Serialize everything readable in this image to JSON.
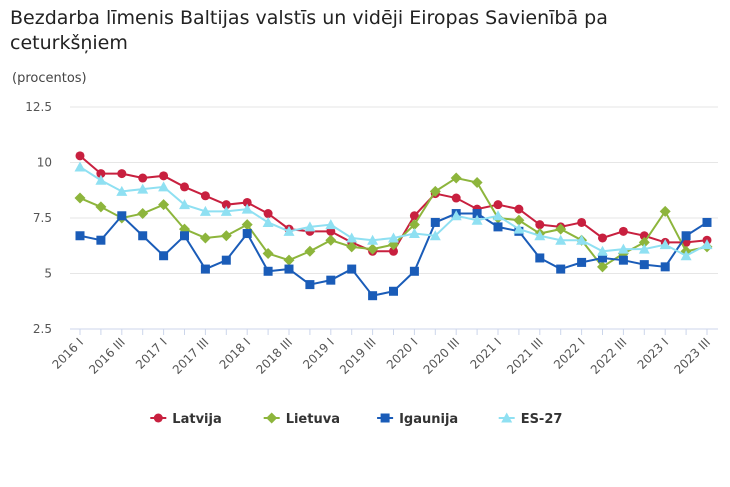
{
  "chart_data": {
    "type": "line",
    "title": "Bezdarba līmenis Baltijas valstīs un vidēji Eiropas Savienībā pa ceturkšņiem",
    "subtitle": "(procentos)",
    "categories": [
      "2016 I",
      null,
      "2016 III",
      null,
      "2017 I",
      null,
      "2017 III",
      null,
      "2018 I",
      null,
      "2018 III",
      null,
      "2019 I",
      null,
      "2019 III",
      null,
      "2020 I",
      null,
      "2020 III",
      null,
      "2021 I",
      null,
      "2021 III",
      null,
      "2022 I",
      null,
      "2022 III",
      null,
      "2023 I",
      null,
      "2023 III"
    ],
    "ylim": [
      2.5,
      12.5
    ],
    "yticks": [
      2.5,
      5,
      7.5,
      10,
      12.5
    ],
    "grid": true,
    "legend": "bottom",
    "series": [
      {
        "name": "Latvija",
        "color": "#c8203f",
        "marker": "circle",
        "values": [
          10.3,
          9.5,
          9.5,
          9.3,
          9.4,
          8.9,
          8.5,
          8.1,
          8.2,
          7.7,
          7.0,
          6.9,
          6.9,
          6.4,
          6.0,
          6.0,
          7.6,
          8.6,
          8.4,
          7.9,
          8.1,
          7.9,
          7.2,
          7.1,
          7.3,
          6.6,
          6.9,
          6.7,
          6.4,
          6.4,
          6.5
        ]
      },
      {
        "name": "Lietuva",
        "color": "#8db53c",
        "marker": "diamond",
        "values": [
          8.4,
          8.0,
          7.5,
          7.7,
          8.1,
          7.0,
          6.6,
          6.7,
          7.2,
          5.9,
          5.6,
          6.0,
          6.5,
          6.2,
          6.1,
          6.3,
          7.2,
          8.7,
          9.3,
          9.1,
          7.5,
          7.4,
          6.8,
          7.0,
          6.5,
          5.3,
          5.9,
          6.4,
          7.8,
          6.0,
          6.2
        ]
      },
      {
        "name": "Igaunija",
        "color": "#1a5cb8",
        "marker": "square",
        "values": [
          6.7,
          6.5,
          7.6,
          6.7,
          5.8,
          6.7,
          5.2,
          5.6,
          6.8,
          5.1,
          5.2,
          4.5,
          4.7,
          5.2,
          4.0,
          4.2,
          5.1,
          7.3,
          7.7,
          7.7,
          7.1,
          6.9,
          5.7,
          5.2,
          5.5,
          5.7,
          5.6,
          5.4,
          5.3,
          6.7,
          7.3
        ]
      },
      {
        "name": "ES-27",
        "color": "#8fe0f2",
        "marker": "triangle",
        "values": [
          9.8,
          9.2,
          8.7,
          8.8,
          8.9,
          8.1,
          7.8,
          7.8,
          7.9,
          7.3,
          6.9,
          7.1,
          7.2,
          6.6,
          6.5,
          6.6,
          6.8,
          6.7,
          7.6,
          7.4,
          7.6,
          7.0,
          6.7,
          6.5,
          6.5,
          6.0,
          6.1,
          6.1,
          6.3,
          5.8,
          6.3
        ]
      }
    ]
  }
}
